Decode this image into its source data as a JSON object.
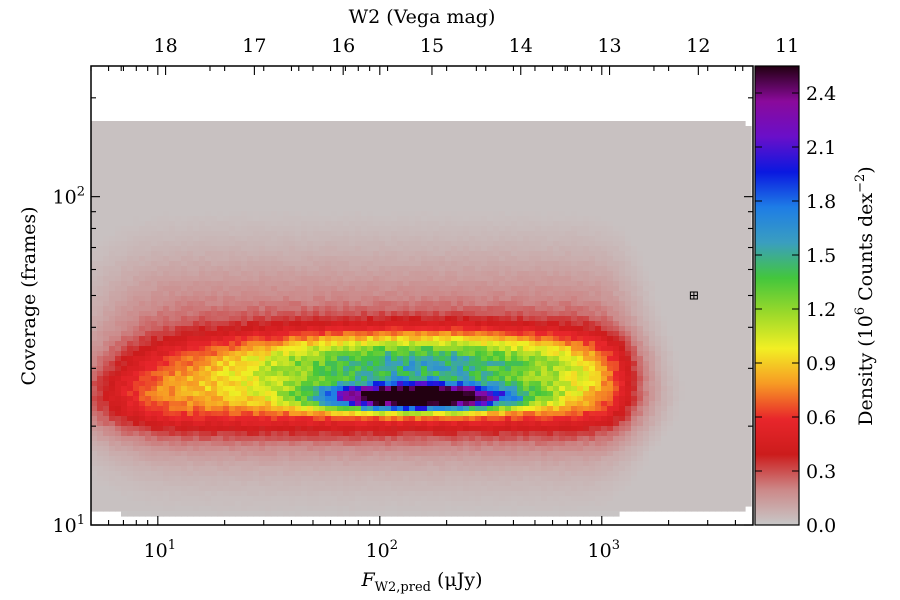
{
  "chart_data": {
    "type": "heatmap",
    "top_axis": {
      "label": "W2 (Vega mag)",
      "ticks": [
        "18",
        "17",
        "16",
        "15",
        "14",
        "13",
        "12",
        "11"
      ],
      "tick_values": [
        18,
        17,
        16,
        15,
        14,
        13,
        12,
        11
      ]
    },
    "x_axis": {
      "label_main": "F",
      "label_sub": "W2,pred",
      "label_unit": " (μJy)",
      "scale": "log",
      "range": [
        5,
        4800
      ],
      "ticks": [
        {
          "base": "10",
          "exp": "1",
          "value": 10
        },
        {
          "base": "10",
          "exp": "2",
          "value": 100
        },
        {
          "base": "10",
          "exp": "3",
          "value": 1000
        }
      ]
    },
    "y_axis": {
      "label": "Coverage (frames)",
      "scale": "log",
      "range": [
        10,
        250
      ],
      "ticks": [
        {
          "base": "10",
          "exp": "1",
          "value": 10
        },
        {
          "base": "10",
          "exp": "2",
          "value": 100
        }
      ]
    },
    "colorbar": {
      "label_pre": "Density (10",
      "label_exp": "6",
      "label_mid": " Counts dex",
      "label_exp2": "−2",
      "label_post": ")",
      "range": [
        0.0,
        2.55
      ],
      "ticks": [
        "0.0",
        "0.3",
        "0.6",
        "0.9",
        "1.2",
        "1.5",
        "1.8",
        "2.1",
        "2.4"
      ],
      "tick_values": [
        0.0,
        0.3,
        0.6,
        0.9,
        1.2,
        1.5,
        1.8,
        2.1,
        2.4
      ],
      "colors": [
        "#c8c8c8",
        "#cc8888",
        "#cc1c1c",
        "#e8262b",
        "#f79a24",
        "#f2ef24",
        "#9bd92a",
        "#43c63d",
        "#3a9ec0",
        "#1e7de6",
        "#0a18e0",
        "#6a0fc9",
        "#8a0a9b",
        "#220011"
      ]
    },
    "density_model": {
      "peak": {
        "flux": 150,
        "coverage": 24.5,
        "density": 2.55
      },
      "shoulder": {
        "coverage": 32,
        "density": 1.05
      },
      "flux_limits": [
        6,
        1300
      ],
      "envelope_flux_max": 4800,
      "envelope_coverage": [
        11,
        170
      ]
    },
    "marker": {
      "flux": 2600,
      "coverage": 50
    }
  }
}
